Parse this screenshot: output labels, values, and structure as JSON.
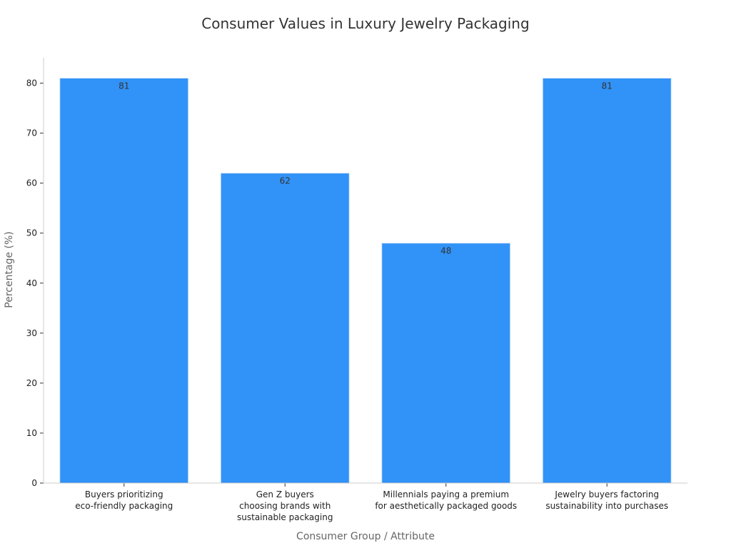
{
  "chart_data": {
    "type": "bar",
    "title": "Consumer Values in Luxury Jewelry Packaging",
    "xlabel": "Consumer Group / Attribute",
    "ylabel": "Percentage (%)",
    "categories": [
      [
        "Buyers prioritizing",
        "eco-friendly packaging"
      ],
      [
        "Gen Z buyers",
        "choosing brands with",
        "sustainable packaging"
      ],
      [
        "Millennials paying a premium",
        "for aesthetically packaged goods"
      ],
      [
        "Jewelry buyers factoring",
        "sustainability into purchases"
      ]
    ],
    "values": [
      81,
      62,
      48,
      81
    ],
    "yticks": [
      0,
      10,
      20,
      30,
      40,
      50,
      60,
      70,
      80
    ],
    "ylim": [
      0,
      85
    ],
    "bar_color": "#3192f7",
    "grid": false,
    "legend": "none"
  }
}
